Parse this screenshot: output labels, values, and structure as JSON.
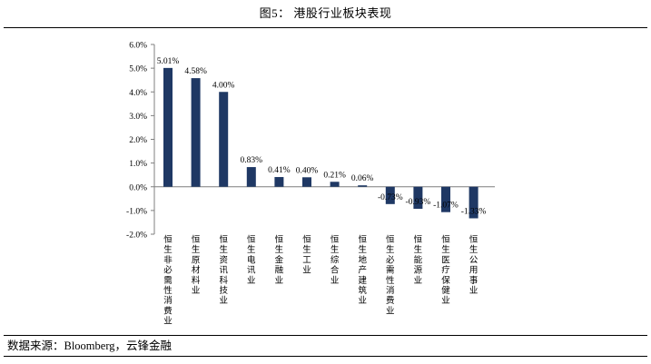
{
  "figure": {
    "title": "图5： 港股行业板块表现",
    "source": "数据来源：Bloomberg，云锋金融"
  },
  "chart_data": {
    "type": "bar",
    "categories": [
      "恒生非必需性消费业",
      "恒生原材料业",
      "恒生资讯科技业",
      "恒生电讯业",
      "恒生金融业",
      "恒生工业",
      "恒生综合业",
      "恒生地产建筑业",
      "恒生必需性消费业",
      "恒生能源业",
      "恒生医疗保健业",
      "恒生公用事业"
    ],
    "values": [
      5.01,
      4.58,
      4.0,
      0.83,
      0.41,
      0.4,
      0.21,
      0.06,
      -0.73,
      -0.93,
      -1.07,
      -1.33
    ],
    "data_labels": [
      "5.01%",
      "4.58%",
      "4.00%",
      "0.83%",
      "0.41%",
      "0.40%",
      "0.21%",
      "0.06%",
      "-0.73%",
      "-0.93%",
      "-1.07%",
      "-1.33%"
    ],
    "yticks": [
      "-2.0%",
      "-1.0%",
      "0.0%",
      "1.0%",
      "2.0%",
      "3.0%",
      "4.0%",
      "5.0%",
      "6.0%"
    ],
    "ylim": [
      -2,
      6
    ],
    "ytick_step": 1,
    "grid": false,
    "legend": "none",
    "bar_color": "#1f3864",
    "xlabel": "",
    "ylabel": ""
  }
}
